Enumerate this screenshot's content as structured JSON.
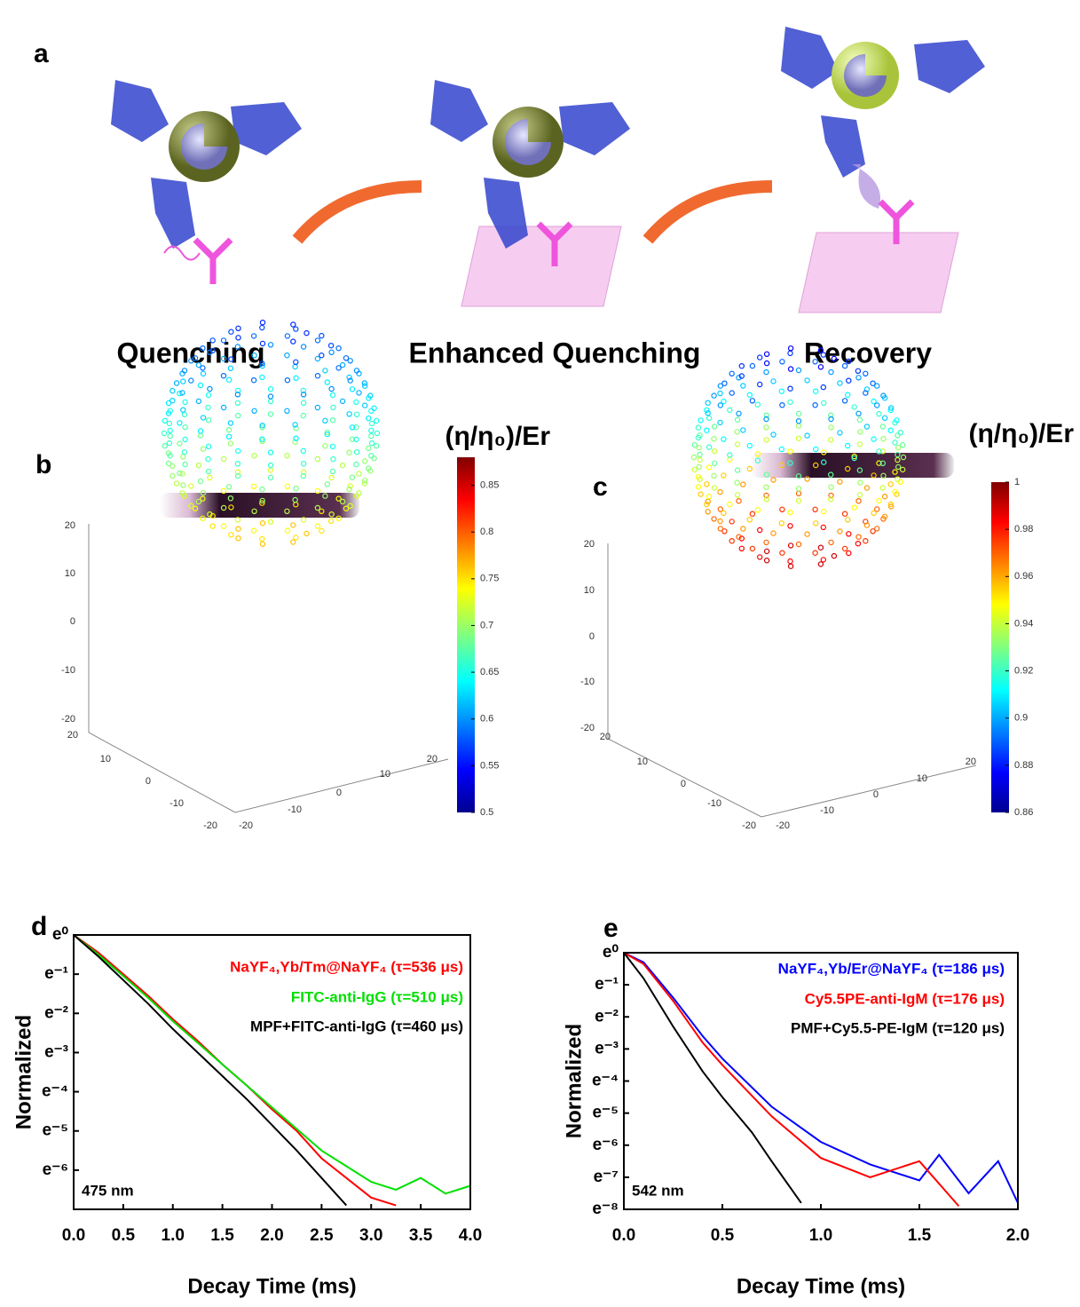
{
  "panel_a": {
    "label": "a",
    "stages": [
      "Quenching",
      "Enhanced Quenching",
      "Recovery"
    ]
  },
  "panel_b": {
    "label": "b",
    "colorbar": {
      "title": "(η/η₀)/Er",
      "lim": [
        0.5,
        0.88
      ],
      "ticks": [
        0.5,
        0.55,
        0.6,
        0.65,
        0.7,
        0.75,
        0.8,
        0.85
      ]
    },
    "z_ticks": [
      20,
      10,
      0,
      -10,
      -20
    ],
    "x_ticks": [
      20,
      10,
      0,
      -10,
      -20
    ],
    "y_ticks": [
      -20,
      -10,
      0,
      10,
      20
    ]
  },
  "panel_c": {
    "label": "c",
    "colorbar": {
      "title": "(η/η₀)/Er",
      "lim": [
        0.86,
        1.0
      ],
      "ticks": [
        0.86,
        0.88,
        0.9,
        0.92,
        0.94,
        0.96,
        0.98,
        1
      ]
    },
    "z_ticks": [
      20,
      10,
      0,
      -10,
      -20
    ],
    "x_ticks": [
      20,
      10,
      0,
      -10,
      -20
    ],
    "y_ticks": [
      -20,
      -10,
      0,
      10,
      20
    ]
  },
  "chart_data": [
    {
      "type": "line",
      "panel_label": "d",
      "x_label": "Decay Time (ms)",
      "y_label": "Normalized",
      "annotation": "475 nm",
      "xlim": [
        0,
        4
      ],
      "ylim": [
        -7,
        0
      ],
      "xticks": [
        {
          "value": 0,
          "label": "0.0"
        },
        {
          "value": 0.5,
          "label": "0.5"
        },
        {
          "value": 1,
          "label": "1.0"
        },
        {
          "value": 1.5,
          "label": "1.5"
        },
        {
          "value": 2,
          "label": "2.0"
        },
        {
          "value": 2.5,
          "label": "2.5"
        },
        {
          "value": 3,
          "label": "3.0"
        },
        {
          "value": 3.5,
          "label": "3.5"
        },
        {
          "value": 4,
          "label": "4.0"
        }
      ],
      "yticks": [
        {
          "value": 0,
          "label": "e⁰"
        },
        {
          "value": -1,
          "label": "e⁻¹"
        },
        {
          "value": -2,
          "label": "e⁻²"
        },
        {
          "value": -3,
          "label": "e⁻³"
        },
        {
          "value": -4,
          "label": "e⁻⁴"
        },
        {
          "value": -5,
          "label": "e⁻⁵"
        },
        {
          "value": -6,
          "label": "e⁻⁶"
        }
      ],
      "series": [
        {
          "name": "NaYF₄,Yb/Tm@NaYF₄ (τ=536 μs)",
          "color": "#ff0000",
          "x": [
            0,
            0.25,
            0.5,
            0.75,
            1,
            1.25,
            1.5,
            1.75,
            2,
            2.25,
            2.5,
            2.75,
            3,
            3.25
          ],
          "values": [
            0,
            -0.45,
            -1.0,
            -1.55,
            -2.15,
            -2.7,
            -3.3,
            -3.85,
            -4.45,
            -5.0,
            -5.7,
            -6.2,
            -6.7,
            -6.9
          ]
        },
        {
          "name": "FITC-anti-IgG (τ=510 μs)",
          "color": "#00e000",
          "x": [
            0,
            0.25,
            0.5,
            0.75,
            1,
            1.25,
            1.5,
            1.75,
            2,
            2.25,
            2.5,
            2.75,
            3,
            3.25,
            3.5,
            3.75,
            4
          ],
          "values": [
            0,
            -0.5,
            -1.05,
            -1.6,
            -2.2,
            -2.75,
            -3.3,
            -3.85,
            -4.4,
            -4.95,
            -5.5,
            -5.9,
            -6.3,
            -6.5,
            -6.2,
            -6.6,
            -6.4
          ]
        },
        {
          "name": "MPF+FITC-anti-IgG (τ=460 μs)",
          "color": "#000000",
          "x": [
            0,
            0.25,
            0.5,
            0.75,
            1,
            1.25,
            1.5,
            1.75,
            2,
            2.25,
            2.5,
            2.75
          ],
          "values": [
            0,
            -0.55,
            -1.15,
            -1.75,
            -2.4,
            -3.0,
            -3.6,
            -4.2,
            -4.85,
            -5.5,
            -6.2,
            -6.9
          ]
        }
      ]
    },
    {
      "type": "line",
      "panel_label": "e",
      "x_label": "Decay Time (ms)",
      "y_label": "Normalized",
      "annotation": "542 nm",
      "xlim": [
        0,
        2
      ],
      "ylim": [
        -8,
        0
      ],
      "xticks": [
        {
          "value": 0,
          "label": "0.0"
        },
        {
          "value": 0.5,
          "label": "0.5"
        },
        {
          "value": 1,
          "label": "1.0"
        },
        {
          "value": 1.5,
          "label": "1.5"
        },
        {
          "value": 2,
          "label": "2.0"
        }
      ],
      "yticks": [
        {
          "value": 0,
          "label": "e⁰"
        },
        {
          "value": -1,
          "label": "e⁻¹"
        },
        {
          "value": -2,
          "label": "e⁻²"
        },
        {
          "value": -3,
          "label": "e⁻³"
        },
        {
          "value": -4,
          "label": "e⁻⁴"
        },
        {
          "value": -5,
          "label": "e⁻⁵"
        },
        {
          "value": -6,
          "label": "e⁻⁶"
        },
        {
          "value": -7,
          "label": "e⁻⁷"
        },
        {
          "value": -8,
          "label": "e⁻⁸"
        }
      ],
      "series": [
        {
          "name": "NaYF₄,Yb/Er@NaYF₄ (τ=186 μs)",
          "color": "#0000ff",
          "x": [
            0,
            0.1,
            0.25,
            0.4,
            0.5,
            0.75,
            1,
            1.25,
            1.5,
            1.6,
            1.75,
            1.9,
            2
          ],
          "values": [
            0,
            -0.3,
            -1.4,
            -2.6,
            -3.3,
            -4.8,
            -5.9,
            -6.6,
            -7.1,
            -6.3,
            -7.5,
            -6.5,
            -7.8
          ]
        },
        {
          "name": "Cy5.5PE-anti-IgM (τ=176 μs)",
          "color": "#ff0000",
          "x": [
            0,
            0.1,
            0.25,
            0.4,
            0.5,
            0.75,
            1,
            1.25,
            1.5,
            1.7
          ],
          "values": [
            0,
            -0.35,
            -1.5,
            -2.8,
            -3.5,
            -5.1,
            -6.4,
            -7.0,
            -6.5,
            -7.9
          ]
        },
        {
          "name": "PMF+Cy5.5-PE-IgM (τ=120 μs)",
          "color": "#000000",
          "x": [
            0,
            0.1,
            0.25,
            0.4,
            0.5,
            0.65,
            0.75,
            0.9
          ],
          "values": [
            0,
            -0.8,
            -2.3,
            -3.7,
            -4.5,
            -5.6,
            -6.5,
            -7.8
          ]
        }
      ]
    }
  ]
}
